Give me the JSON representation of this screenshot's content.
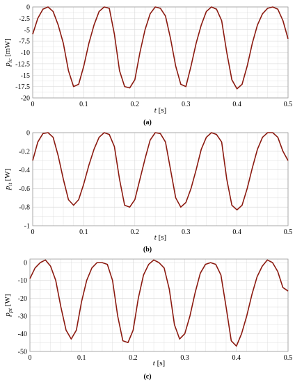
{
  "chart_data": [
    {
      "type": "line",
      "caption": "(a)",
      "ylabel_sym": "p",
      "ylabel_sub": "ic",
      "ylabel_unit": "[mW]",
      "xlabel_sym": "t",
      "xlabel_unit": "[s]",
      "xlim": [
        0,
        0.5
      ],
      "ylim": [
        -20,
        0
      ],
      "xticks": [
        0,
        0.1,
        0.2,
        0.3,
        0.4,
        0.5
      ],
      "xtick_labels": [
        "0",
        "0.1",
        "0.2",
        "0.3",
        "0.4",
        "0.5"
      ],
      "yticks": [
        -20,
        -17.5,
        -15,
        -12.5,
        -10,
        -7.5,
        -5,
        -2.5,
        0
      ],
      "ytick_labels": [
        "-20",
        "-17.5",
        "-15",
        "-12.5",
        "-10",
        "-7.5",
        "-5",
        "-2.5",
        "0"
      ],
      "grid": true,
      "color": "#8b1a10",
      "series": [
        {
          "x": [
            0,
            0.01,
            0.02,
            0.03,
            0.04,
            0.05,
            0.06,
            0.07,
            0.08,
            0.09,
            0.1,
            0.11,
            0.12,
            0.13,
            0.14,
            0.15,
            0.16,
            0.17,
            0.18,
            0.19,
            0.2,
            0.21,
            0.22,
            0.23,
            0.24,
            0.25,
            0.26,
            0.27,
            0.28,
            0.29,
            0.3,
            0.31,
            0.32,
            0.33,
            0.34,
            0.35,
            0.36,
            0.37,
            0.38,
            0.39,
            0.4,
            0.41,
            0.42,
            0.43,
            0.44,
            0.45,
            0.46,
            0.47,
            0.48,
            0.49,
            0.5
          ],
          "y": [
            -6,
            -2.5,
            -0.5,
            0,
            -1,
            -4,
            -8,
            -14,
            -17.5,
            -17,
            -13,
            -8,
            -4,
            -1,
            0,
            -0.3,
            -6,
            -14,
            -17.5,
            -17.8,
            -16,
            -10,
            -5,
            -1.5,
            0,
            -0.3,
            -2,
            -7,
            -13,
            -17,
            -17.5,
            -13,
            -8,
            -4,
            -1,
            0,
            -0.5,
            -3,
            -10,
            -16,
            -18,
            -17,
            -13,
            -8,
            -4,
            -1.5,
            -0.3,
            0,
            -0.5,
            -3,
            -7
          ]
        }
      ]
    },
    {
      "type": "line",
      "caption": "(b)",
      "ylabel_sym": "p",
      "ylabel_sub": "it",
      "ylabel_unit": "[W]",
      "xlabel_sym": "t",
      "xlabel_unit": "[s]",
      "xlim": [
        0,
        0.5
      ],
      "ylim": [
        -1,
        0
      ],
      "xticks": [
        0,
        0.1,
        0.2,
        0.3,
        0.4,
        0.5
      ],
      "xtick_labels": [
        "0",
        "0.1",
        "0.2",
        "0.3",
        "0.4",
        "0.5"
      ],
      "yticks": [
        -1,
        -0.8,
        -0.6,
        -0.4,
        -0.2,
        0
      ],
      "ytick_labels": [
        "-1",
        "-0.8",
        "-0.6",
        "-0.4",
        "-0.2",
        "0"
      ],
      "grid": true,
      "color": "#8b1a10",
      "series": [
        {
          "x": [
            0,
            0.01,
            0.02,
            0.03,
            0.04,
            0.05,
            0.06,
            0.07,
            0.08,
            0.09,
            0.1,
            0.11,
            0.12,
            0.13,
            0.14,
            0.15,
            0.16,
            0.17,
            0.18,
            0.19,
            0.2,
            0.21,
            0.22,
            0.23,
            0.24,
            0.25,
            0.26,
            0.27,
            0.28,
            0.29,
            0.3,
            0.31,
            0.32,
            0.33,
            0.34,
            0.35,
            0.36,
            0.37,
            0.38,
            0.39,
            0.4,
            0.41,
            0.42,
            0.43,
            0.44,
            0.45,
            0.46,
            0.47,
            0.48,
            0.49,
            0.5
          ],
          "y": [
            -0.3,
            -0.1,
            -0.01,
            0,
            -0.05,
            -0.25,
            -0.5,
            -0.72,
            -0.78,
            -0.72,
            -0.55,
            -0.35,
            -0.18,
            -0.05,
            0,
            -0.02,
            -0.15,
            -0.5,
            -0.78,
            -0.8,
            -0.72,
            -0.5,
            -0.28,
            -0.08,
            0,
            -0.01,
            -0.1,
            -0.4,
            -0.7,
            -0.8,
            -0.75,
            -0.6,
            -0.4,
            -0.18,
            -0.05,
            0,
            -0.02,
            -0.1,
            -0.5,
            -0.78,
            -0.83,
            -0.78,
            -0.6,
            -0.38,
            -0.18,
            -0.05,
            0,
            0,
            -0.05,
            -0.2,
            -0.3
          ]
        }
      ]
    },
    {
      "type": "line",
      "caption": "(c)",
      "ylabel_sym": "p",
      "ylabel_sub": "pt",
      "ylabel_unit": "[W]",
      "xlabel_sym": "t",
      "xlabel_unit": "[s]",
      "xlim": [
        0,
        0.5
      ],
      "ylim": [
        -50,
        2
      ],
      "xticks": [
        0,
        0.1,
        0.2,
        0.3,
        0.4,
        0.5
      ],
      "xtick_labels": [
        "0",
        "0.1",
        "0.2",
        "0.3",
        "0.4",
        "0.5"
      ],
      "yticks": [
        -50,
        -40,
        -30,
        -20,
        -10,
        0
      ],
      "ytick_labels": [
        "-50",
        "-40",
        "-30",
        "-20",
        "-10",
        "0"
      ],
      "grid": true,
      "color": "#8b1a10",
      "series": [
        {
          "x": [
            0,
            0.01,
            0.02,
            0.03,
            0.04,
            0.05,
            0.06,
            0.07,
            0.08,
            0.09,
            0.1,
            0.11,
            0.12,
            0.13,
            0.14,
            0.15,
            0.16,
            0.17,
            0.18,
            0.19,
            0.2,
            0.21,
            0.22,
            0.23,
            0.24,
            0.25,
            0.26,
            0.27,
            0.28,
            0.29,
            0.3,
            0.31,
            0.32,
            0.33,
            0.34,
            0.35,
            0.36,
            0.37,
            0.38,
            0.39,
            0.4,
            0.41,
            0.42,
            0.43,
            0.44,
            0.45,
            0.46,
            0.47,
            0.48,
            0.49,
            0.5
          ],
          "y": [
            -9,
            -3,
            0,
            1.5,
            -2,
            -10,
            -25,
            -38,
            -43,
            -38,
            -22,
            -10,
            -3,
            0,
            0,
            -1,
            -10,
            -30,
            -44,
            -45,
            -38,
            -20,
            -7,
            -1,
            1.5,
            0,
            -3,
            -15,
            -35,
            -43,
            -40,
            -30,
            -17,
            -6,
            -1,
            0,
            -1,
            -7,
            -25,
            -44,
            -47,
            -40,
            -30,
            -18,
            -8,
            -2,
            1.5,
            0,
            -5,
            -14,
            -16
          ]
        }
      ]
    }
  ]
}
